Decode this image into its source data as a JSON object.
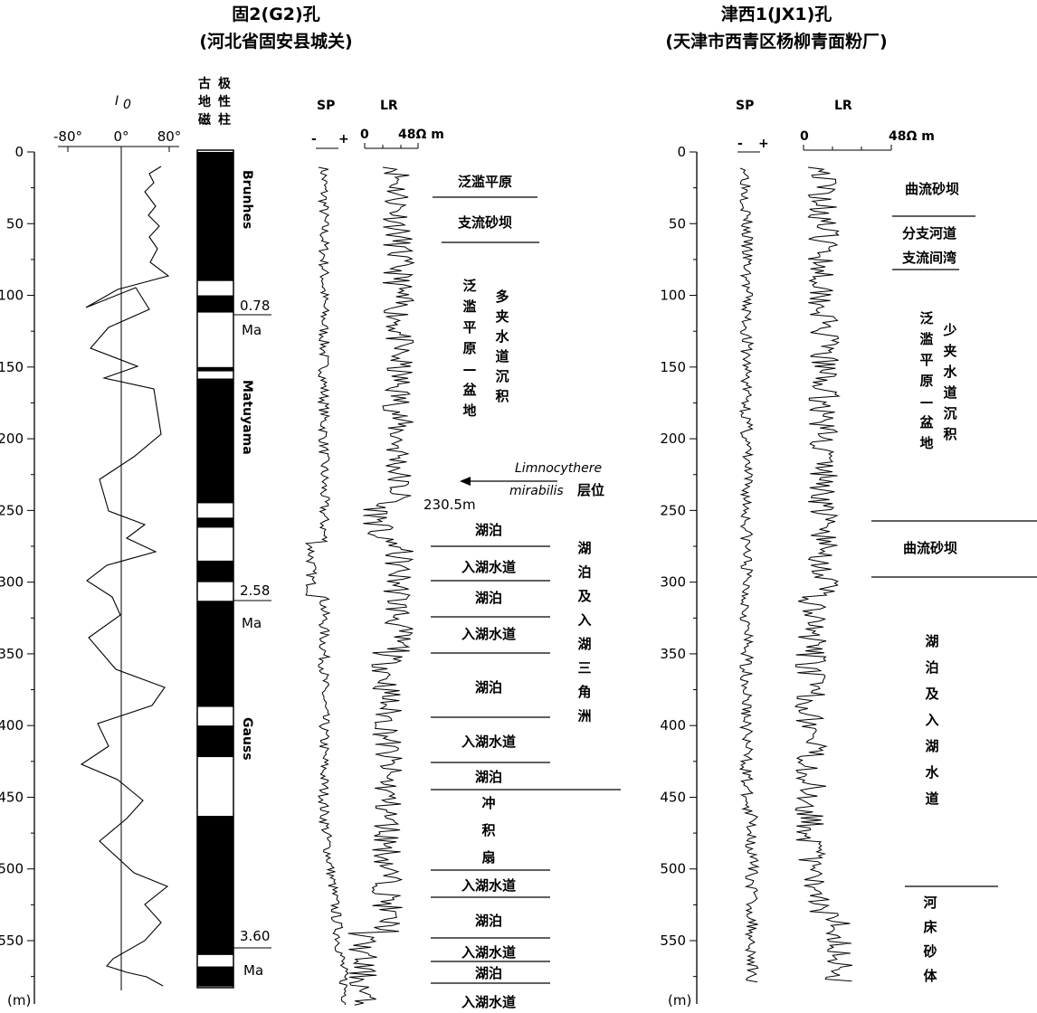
{
  "left_well": {
    "title": "固2(G2)孔",
    "location": "(河北省固安县城关)",
    "inclination_label": "I",
    "inclination_sub": "0",
    "inclination_ticks": [
      "-80°",
      "0°",
      "80°"
    ],
    "col_header_a": [
      "古",
      "地",
      "磁"
    ],
    "col_header_b": [
      "极",
      "性",
      "柱"
    ],
    "sp_label": "SP",
    "sp_minus": "-",
    "sp_plus": "+",
    "lr_label": "LR",
    "lr_zero": "0",
    "lr_max": "48Ω m",
    "depth_ticks": [
      "0",
      "50",
      "100",
      "150",
      "200",
      "250",
      "300",
      "350",
      "400",
      "450",
      "500",
      "550"
    ],
    "depth_unit": "(m)",
    "chrons": [
      "Brunhes",
      "Matuyama",
      "Gauss"
    ],
    "ages": [
      {
        "value": "0.78",
        "unit": "Ma"
      },
      {
        "value": "2.58",
        "unit": "Ma"
      },
      {
        "value": "3.60",
        "unit": "Ma"
      }
    ],
    "facies": [
      "泛滥平原",
      "支流砂坝",
      "湖泊",
      "入湖水道",
      "湖泊",
      "入湖水道",
      "湖泊",
      "入湖水道",
      "湖泊",
      "入湖水道",
      "湖泊",
      "入湖水道",
      "湖泊",
      "入湖水道"
    ],
    "facies_vertical_a": [
      "泛",
      "滥",
      "平",
      "原",
      "—",
      "盆",
      "地"
    ],
    "facies_vertical_b": [
      "多",
      "夹",
      "水",
      "道",
      "沉",
      "积"
    ],
    "fan_vertical": [
      "冲",
      "积",
      "扇"
    ],
    "delta_vertical": [
      "湖",
      "泊",
      "及",
      "入",
      "湖",
      "三",
      "角",
      "洲"
    ],
    "marker_species_line1": "Limnocythere",
    "marker_species_line2": "mirabilis",
    "marker_suffix": "层位",
    "marker_depth": "230.5m"
  },
  "right_well": {
    "title": "津西1(JX1)孔",
    "location": "(天津市西青区杨柳青面粉厂)",
    "sp_label": "SP",
    "sp_minus": "-",
    "sp_plus": "+",
    "lr_label": "LR",
    "lr_zero": "0",
    "lr_max": "48Ω m",
    "depth_ticks": [
      "0",
      "50",
      "100",
      "150",
      "200",
      "250",
      "300",
      "350",
      "400",
      "450",
      "500",
      "550"
    ],
    "depth_unit": "(m)",
    "facies": [
      "曲流砂坝",
      "分支河道",
      "支流间湾",
      "曲流砂坝"
    ],
    "vertical_a": [
      "泛",
      "滥",
      "平",
      "原",
      "—",
      "盆",
      "地"
    ],
    "vertical_b": [
      "少",
      "夹",
      "水",
      "道",
      "沉",
      "积"
    ],
    "vertical_c": [
      "湖",
      "泊",
      "及",
      "入",
      "湖",
      "水",
      "道"
    ],
    "vertical_d": [
      "河",
      "床",
      "砂",
      "体"
    ]
  }
}
